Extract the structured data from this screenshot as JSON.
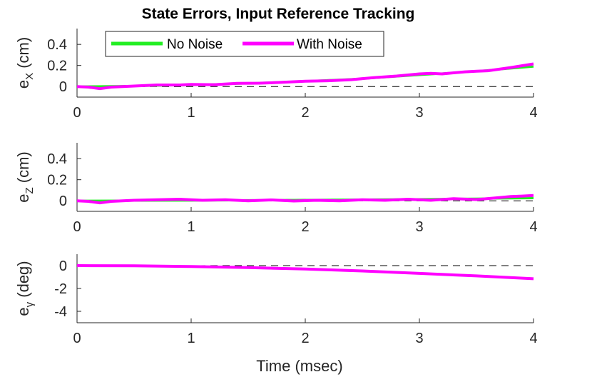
{
  "chart_data": {
    "title": "State Errors, Input Reference Tracking",
    "xlabel": "Time (msec)",
    "legend": {
      "placement": "top-left",
      "entries": [
        {
          "label": "No Noise",
          "color": "#22ee22"
        },
        {
          "label": "With Noise",
          "color": "#ff00ff"
        }
      ]
    },
    "subplots": [
      {
        "type": "line",
        "ylabel": {
          "main": "e",
          "sub": "X",
          "unit": "(cm)"
        },
        "xlim": [
          0,
          4
        ],
        "ylim": [
          -0.1,
          0.55
        ],
        "xticks": [
          "0",
          "1",
          "2",
          "3",
          "4"
        ],
        "yticks": [
          {
            "v": 0,
            "label": "0"
          },
          {
            "v": 0.2,
            "label": "0.2"
          },
          {
            "v": 0.4,
            "label": "0.4"
          }
        ],
        "reference_line": 0,
        "series": [
          {
            "name": "No Noise",
            "color": "#22ee22",
            "x": [
              0,
              0.5,
              1,
              1.5,
              2,
              2.5,
              3,
              3.5,
              4
            ],
            "y": [
              0,
              0.005,
              0.015,
              0.03,
              0.05,
              0.075,
              0.11,
              0.145,
              0.19
            ]
          },
          {
            "name": "With Noise",
            "color": "#ff00ff",
            "x": [
              0,
              0.1,
              0.2,
              0.3,
              0.5,
              0.7,
              0.9,
              1.0,
              1.2,
              1.4,
              1.6,
              1.8,
              2.0,
              2.2,
              2.4,
              2.6,
              2.8,
              3.0,
              3.1,
              3.2,
              3.3,
              3.4,
              3.5,
              3.6,
              3.8,
              4.0
            ],
            "y": [
              0,
              -0.005,
              -0.02,
              -0.005,
              0.005,
              0.015,
              0.015,
              0.02,
              0.018,
              0.03,
              0.032,
              0.04,
              0.05,
              0.055,
              0.065,
              0.085,
              0.1,
              0.12,
              0.125,
              0.12,
              0.13,
              0.14,
              0.145,
              0.15,
              0.18,
              0.215
            ]
          }
        ]
      },
      {
        "type": "line",
        "ylabel": {
          "main": "e",
          "sub": "Z",
          "unit": "(cm)"
        },
        "xlim": [
          0,
          4
        ],
        "ylim": [
          -0.1,
          0.55
        ],
        "xticks": [
          "0",
          "1",
          "2",
          "3",
          "4"
        ],
        "yticks": [
          {
            "v": 0,
            "label": "0"
          },
          {
            "v": 0.2,
            "label": "0.2"
          },
          {
            "v": 0.4,
            "label": "0.4"
          }
        ],
        "reference_line": 0,
        "series": [
          {
            "name": "No Noise",
            "color": "#22ee22",
            "x": [
              0,
              1,
              2,
              3,
              4
            ],
            "y": [
              0,
              0.002,
              0.008,
              0.015,
              0.025
            ]
          },
          {
            "name": "With Noise",
            "color": "#ff00ff",
            "x": [
              0,
              0.1,
              0.2,
              0.3,
              0.5,
              0.7,
              0.9,
              1.1,
              1.3,
              1.5,
              1.7,
              1.9,
              2.1,
              2.3,
              2.5,
              2.7,
              2.9,
              3.1,
              3.3,
              3.5,
              3.7,
              3.8,
              3.9,
              4.0
            ],
            "y": [
              0,
              -0.005,
              -0.02,
              -0.005,
              0.005,
              0.01,
              0.015,
              0.005,
              0.01,
              0.0,
              0.008,
              -0.002,
              0.005,
              0.0,
              0.01,
              0.005,
              0.015,
              0.005,
              0.02,
              0.012,
              0.03,
              0.04,
              0.045,
              0.05
            ]
          }
        ]
      },
      {
        "type": "line",
        "ylabel": {
          "main": "e",
          "sub": "γ",
          "unit": "(deg)"
        },
        "xlim": [
          0,
          4
        ],
        "ylim": [
          -5,
          1
        ],
        "xticks": [
          "0",
          "1",
          "2",
          "3",
          "4"
        ],
        "yticks": [
          {
            "v": -4,
            "label": "-4"
          },
          {
            "v": -2,
            "label": "-2"
          },
          {
            "v": 0,
            "label": "0"
          }
        ],
        "reference_line": 0,
        "series": [
          {
            "name": "No Noise",
            "color": "#22ee22",
            "x": [
              0,
              0.5,
              1,
              1.5,
              2,
              2.5,
              3,
              3.5,
              4
            ],
            "y": [
              0,
              -0.02,
              -0.08,
              -0.17,
              -0.3,
              -0.47,
              -0.68,
              -0.9,
              -1.15
            ]
          },
          {
            "name": "With Noise",
            "color": "#ff00ff",
            "x": [
              0,
              0.5,
              1,
              1.5,
              2,
              2.5,
              3,
              3.5,
              4
            ],
            "y": [
              0,
              -0.02,
              -0.08,
              -0.17,
              -0.3,
              -0.47,
              -0.68,
              -0.9,
              -1.15
            ]
          }
        ]
      }
    ]
  }
}
